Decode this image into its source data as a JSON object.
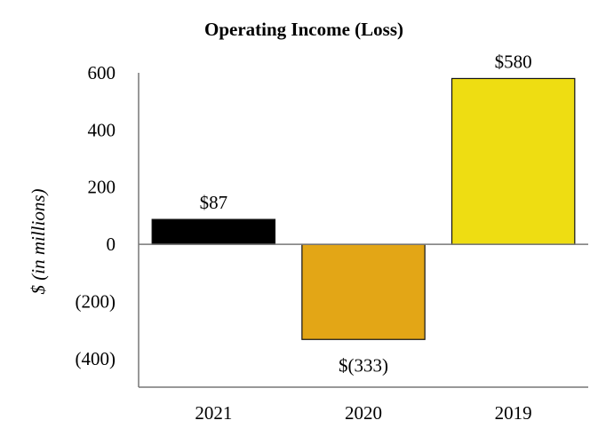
{
  "chart_data": {
    "type": "bar",
    "title": "Operating Income (Loss)",
    "xlabel": "",
    "ylabel": "$ (in millions)",
    "categories": [
      "2021",
      "2020",
      "2019"
    ],
    "values": [
      87,
      -333,
      580
    ],
    "data_labels": [
      "$87",
      "$(333)",
      "$580"
    ],
    "colors": [
      "#000000",
      "#E3A616",
      "#EEDD12"
    ],
    "ylim": [
      -500,
      600
    ],
    "yticks": [
      600,
      400,
      200,
      0,
      -200,
      -400
    ],
    "ytick_labels": [
      "600",
      "400",
      "200",
      "0",
      "(200)",
      "(400)"
    ],
    "grid": false,
    "legend": "none"
  }
}
